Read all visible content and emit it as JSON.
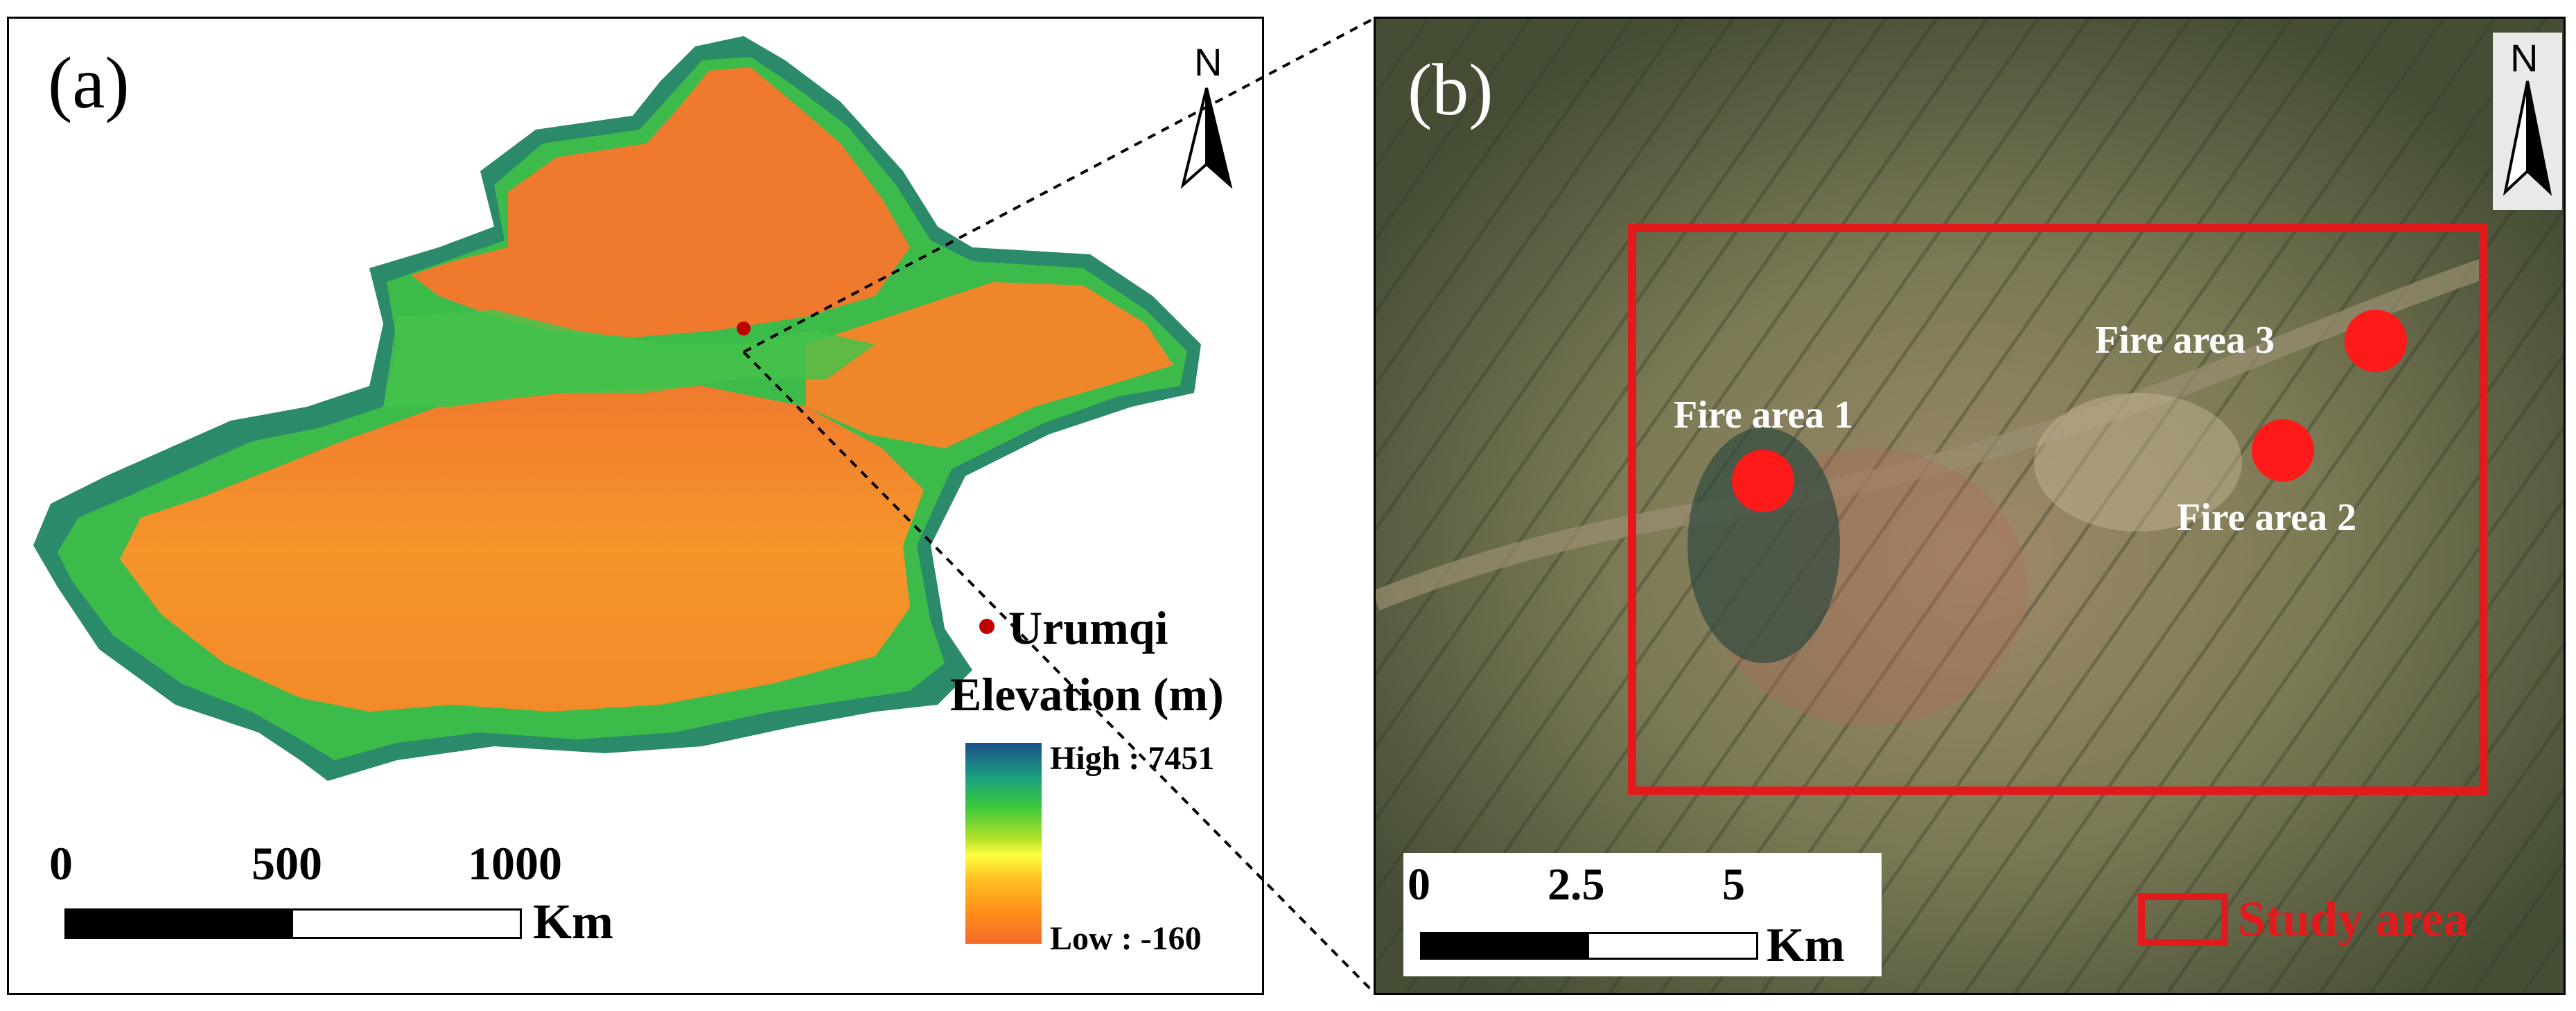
{
  "panel_a": {
    "label": "(a)",
    "north_label": "N",
    "city": {
      "name": "Urumqi",
      "color": "#c00000"
    },
    "legend": {
      "title": "Elevation (m)",
      "high_label": "High : 7451",
      "low_label": "Low : -160",
      "ramp_colors": [
        "#1c4f8c",
        "#1aa27c",
        "#3cc93c",
        "#b6e22a",
        "#ffff40",
        "#ffc020",
        "#ff8c1a",
        "#f56a2a"
      ]
    },
    "scale_bar": {
      "ticks": [
        "0",
        "500",
        "1000"
      ],
      "unit": "Km"
    }
  },
  "panel_b": {
    "label": "(b)",
    "north_label": "N",
    "fire_areas": [
      {
        "label": "Fire area 1"
      },
      {
        "label": "Fire area 2"
      },
      {
        "label": "Fire area 3"
      }
    ],
    "study_area_legend": "Study area",
    "scale_bar": {
      "ticks": [
        "0",
        "2.5",
        "5"
      ],
      "unit": "Km"
    },
    "colors": {
      "fire_marker": "#ff1a1a",
      "study_box": "#e31a1c"
    }
  }
}
